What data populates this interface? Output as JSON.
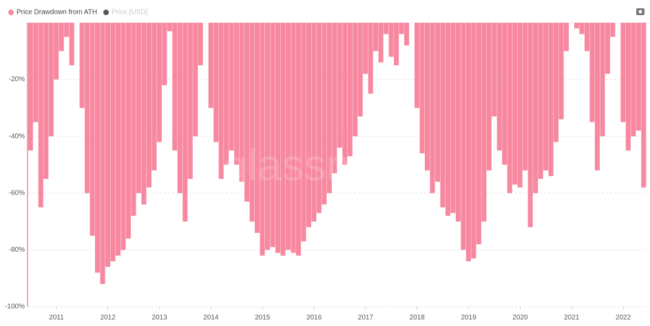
{
  "chart_data": {
    "type": "bar",
    "legend": [
      {
        "name": "Price Drawdown from ATH",
        "color": "#f7889f"
      },
      {
        "name": "Price [USD]",
        "color": "#555555",
        "disabled": true
      }
    ],
    "watermark": "glassnode",
    "x": [
      2010.5,
      2010.6,
      2010.7,
      2010.8,
      2010.9,
      2011.0,
      2011.1,
      2011.2,
      2011.3,
      2011.4,
      2011.5,
      2011.6,
      2011.7,
      2011.8,
      2011.9,
      2012.0,
      2012.1,
      2012.2,
      2012.3,
      2012.4,
      2012.5,
      2012.6,
      2012.7,
      2012.8,
      2012.9,
      2013.0,
      2013.1,
      2013.2,
      2013.3,
      2013.4,
      2013.5,
      2013.6,
      2013.7,
      2013.8,
      2013.9,
      2014.0,
      2014.1,
      2014.2,
      2014.3,
      2014.4,
      2014.5,
      2014.6,
      2014.7,
      2014.8,
      2014.9,
      2015.0,
      2015.1,
      2015.2,
      2015.3,
      2015.4,
      2015.5,
      2015.6,
      2015.7,
      2015.8,
      2015.9,
      2016.0,
      2016.1,
      2016.2,
      2016.3,
      2016.4,
      2016.5,
      2016.6,
      2016.7,
      2016.8,
      2016.9,
      2017.0,
      2017.1,
      2017.2,
      2017.3,
      2017.4,
      2017.5,
      2017.6,
      2017.7,
      2017.8,
      2017.9,
      2018.0,
      2018.1,
      2018.2,
      2018.3,
      2018.4,
      2018.5,
      2018.6,
      2018.7,
      2018.8,
      2018.9,
      2019.0,
      2019.1,
      2019.2,
      2019.3,
      2019.4,
      2019.5,
      2019.6,
      2019.7,
      2019.8,
      2019.9,
      2020.0,
      2020.1,
      2020.2,
      2020.3,
      2020.4,
      2020.5,
      2020.6,
      2020.7,
      2020.8,
      2020.9,
      2021.0,
      2021.1,
      2021.2,
      2021.3,
      2021.4,
      2021.5,
      2021.6,
      2021.7,
      2021.8,
      2021.9,
      2022.0,
      2022.1,
      2022.2,
      2022.3,
      2022.4
    ],
    "series": [
      {
        "name": "Price Drawdown from ATH",
        "color": "#f7889f",
        "values": [
          -45,
          -35,
          -65,
          -55,
          -40,
          -20,
          -10,
          -5,
          -15,
          0,
          -30,
          -60,
          -75,
          -88,
          -92,
          -86,
          -84,
          -82,
          -80,
          -76,
          -68,
          -60,
          -64,
          -58,
          -52,
          -42,
          -22,
          -3,
          -45,
          -60,
          -70,
          -55,
          -40,
          -15,
          0,
          -30,
          -42,
          -55,
          -50,
          -45,
          -50,
          -56,
          -63,
          -70,
          -74,
          -82,
          -80,
          -79,
          -81,
          -82,
          -80,
          -81,
          -82,
          -77,
          -72,
          -70,
          -67,
          -64,
          -60,
          -53,
          -44,
          -50,
          -47,
          -40,
          -33,
          -18,
          -25,
          -10,
          -14,
          -4,
          -12,
          -15,
          -4,
          -8,
          0,
          -30,
          -46,
          -52,
          -60,
          -56,
          -65,
          -68,
          -67,
          -70,
          -80,
          -84,
          -83,
          -78,
          -70,
          -52,
          -33,
          -45,
          -50,
          -60,
          -57,
          -58,
          -52,
          -72,
          -60,
          -55,
          -52,
          -54,
          -42,
          -34,
          -10,
          0,
          -2,
          -4,
          -10,
          -35,
          -52,
          -40,
          -18,
          -5,
          0,
          -35,
          -45,
          -40,
          -38,
          -58
        ]
      }
    ],
    "xlim": [
      2010.44,
      2022.44
    ],
    "xticks": [
      2011,
      2012,
      2013,
      2014,
      2015,
      2016,
      2017,
      2018,
      2019,
      2020,
      2021,
      2022
    ],
    "ylim": [
      -100,
      0
    ],
    "yticks": [
      {
        "value": -20,
        "label": "-20%"
      },
      {
        "value": -40,
        "label": "-40%"
      },
      {
        "value": -60,
        "label": "-60%"
      },
      {
        "value": -80,
        "label": "-80%"
      },
      {
        "value": -100,
        "label": "-100%"
      }
    ],
    "grid": true
  }
}
